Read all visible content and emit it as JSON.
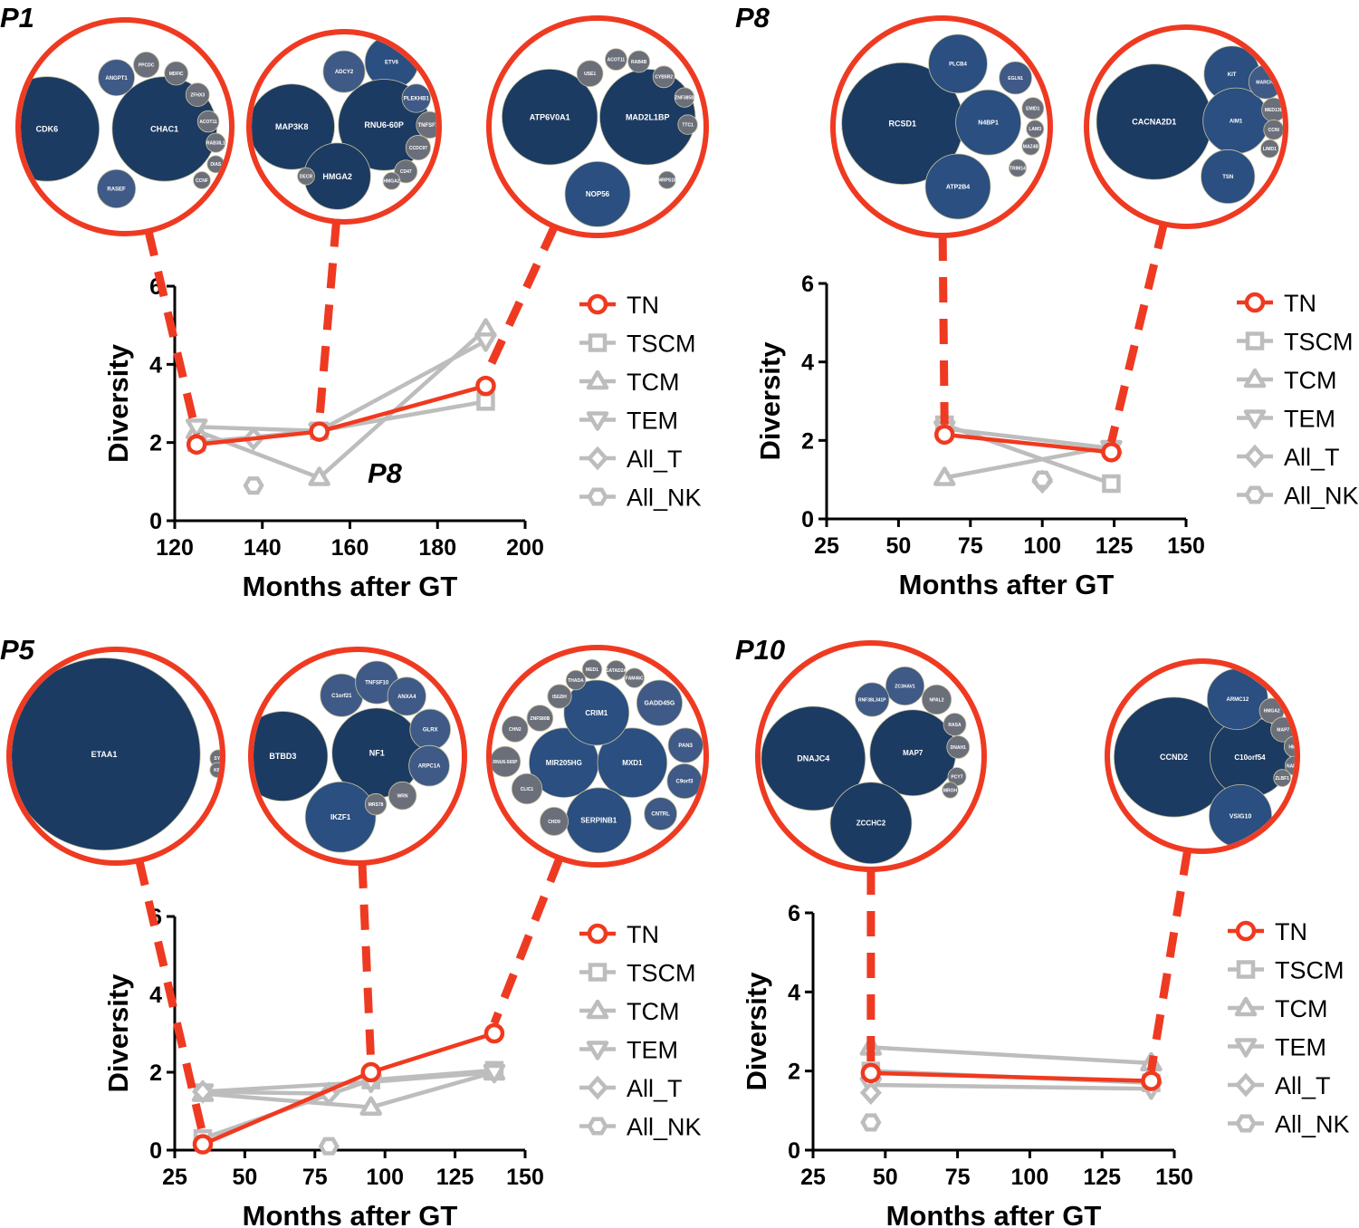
{
  "colors": {
    "tn": "#f0391f",
    "gray": "#bdbdbd",
    "bubble_dark": "#1c3b63",
    "bubble_mid": "#2a4f80",
    "bubble_light": "#3f5a86",
    "bubble_gray": "#6b6f7a",
    "inset_ring": "#ef3a22"
  },
  "legend": [
    "TN",
    "TSCM",
    "TCM",
    "TEM",
    "All_T",
    "All_NK"
  ],
  "chart_data": [
    {
      "id": "P1",
      "type": "line",
      "panel_label": "P1",
      "inner_label": "P8",
      "xlabel": "Months after GT",
      "ylabel": "Diversity",
      "xlim": [
        120,
        200
      ],
      "ylim": [
        0,
        6
      ],
      "xticks": [
        120,
        140,
        160,
        180,
        200
      ],
      "yticks": [
        0,
        2,
        4,
        6
      ],
      "series": [
        {
          "name": "TN",
          "points": [
            [
              125,
              1.95
            ],
            [
              153,
              2.28
            ],
            [
              191,
              3.45
            ]
          ]
        },
        {
          "name": "TSCM",
          "points": [
            [
              125,
              2.0
            ],
            [
              153,
              2.3
            ],
            [
              191,
              3.05
            ]
          ]
        },
        {
          "name": "TCM",
          "points": [
            [
              125,
              2.3
            ],
            [
              153,
              1.1
            ],
            [
              191,
              4.9
            ]
          ]
        },
        {
          "name": "TEM",
          "points": [
            [
              125,
              2.4
            ],
            [
              153,
              2.3
            ],
            [
              191,
              4.6
            ]
          ]
        },
        {
          "name": "All_T",
          "points": [
            [
              138,
              2.1
            ]
          ]
        },
        {
          "name": "All_NK",
          "points": [
            [
              138,
              0.9
            ]
          ]
        }
      ],
      "insets": [
        {
          "anchor_x": 125,
          "bubbles": [
            {
              "label": "CDK6"
            },
            {
              "label": "CHAC1"
            },
            {
              "label": "RASEF"
            },
            {
              "label": "ANGPT1"
            },
            {
              "label": "PPCDC"
            },
            {
              "label": "MDFIC"
            },
            {
              "label": "ZFHX3"
            },
            {
              "label": "ACOT11"
            },
            {
              "label": "RAB3IL1"
            },
            {
              "label": "DIAS"
            },
            {
              "label": "CCNF"
            }
          ]
        },
        {
          "anchor_x": 153,
          "bubbles": [
            {
              "label": "ADCY2"
            },
            {
              "label": "ETV6"
            },
            {
              "label": "MAP3K8"
            },
            {
              "label": "RNU6-60P"
            },
            {
              "label": "HMGA2"
            },
            {
              "label": "PLEKHB1"
            },
            {
              "label": "TNFSF10"
            },
            {
              "label": "CCDC97"
            },
            {
              "label": "CD47"
            },
            {
              "label": "HMGA2"
            },
            {
              "label": "DECR"
            }
          ]
        },
        {
          "anchor_x": 191,
          "bubbles": [
            {
              "label": "ATP6V0A1"
            },
            {
              "label": "MAD2L1BP"
            },
            {
              "label": "NOP56"
            },
            {
              "label": "USE1"
            },
            {
              "label": "ACOT11"
            },
            {
              "label": "RAB4B"
            },
            {
              "label": "CYB5R2"
            },
            {
              "label": "ZNF385B"
            },
            {
              "label": "TTC1"
            },
            {
              "label": "MRPS18"
            }
          ]
        }
      ]
    },
    {
      "id": "P8",
      "type": "line",
      "panel_label": "P8",
      "xlabel": "Months after GT",
      "ylabel": "Diversity",
      "xlim": [
        25,
        150
      ],
      "ylim": [
        0,
        6
      ],
      "xticks": [
        25,
        50,
        75,
        100,
        125,
        150
      ],
      "yticks": [
        0,
        2,
        4,
        6
      ],
      "series": [
        {
          "name": "TN",
          "points": [
            [
              66,
              2.15
            ],
            [
              124,
              1.7
            ]
          ]
        },
        {
          "name": "TSCM",
          "points": [
            [
              66,
              2.4
            ],
            [
              124,
              0.9
            ]
          ]
        },
        {
          "name": "TCM",
          "points": [
            [
              66,
              1.05
            ],
            [
              124,
              1.85
            ]
          ]
        },
        {
          "name": "TEM",
          "points": [
            [
              66,
              2.3
            ],
            [
              124,
              1.8
            ]
          ]
        },
        {
          "name": "All_T",
          "points": [
            [
              100,
              0.95
            ]
          ]
        },
        {
          "name": "All_NK",
          "points": [
            [
              100,
              1.0
            ]
          ]
        }
      ],
      "insets": [
        {
          "anchor_x": 66,
          "bubbles": [
            {
              "label": "RCSD1"
            },
            {
              "label": "PLCB4"
            },
            {
              "label": "N4BP1"
            },
            {
              "label": "ATP2B4"
            },
            {
              "label": "EGLN1"
            },
            {
              "label": "EMID1"
            },
            {
              "label": "LAM3"
            },
            {
              "label": "MAZ4B"
            },
            {
              "label": "TRIM14"
            }
          ]
        },
        {
          "anchor_x": 124,
          "bubbles": [
            {
              "label": "CACNA2D1"
            },
            {
              "label": "KIT"
            },
            {
              "label": "AIM1"
            },
            {
              "label": "TSN"
            },
            {
              "label": "MARCH7"
            },
            {
              "label": "MED13L"
            },
            {
              "label": "CCNI"
            },
            {
              "label": "LIMD1"
            }
          ]
        }
      ]
    },
    {
      "id": "P5",
      "type": "line",
      "panel_label": "P5",
      "xlabel": "Months after GT",
      "ylabel": "Diversity",
      "xlim": [
        25,
        150
      ],
      "ylim": [
        0,
        6
      ],
      "xticks": [
        25,
        50,
        75,
        100,
        125,
        150
      ],
      "yticks": [
        0,
        2,
        4,
        6
      ],
      "series": [
        {
          "name": "TN",
          "points": [
            [
              35,
              0.15
            ],
            [
              95,
              2.0
            ],
            [
              139,
              3.0
            ]
          ]
        },
        {
          "name": "TSCM",
          "points": [
            [
              35,
              0.3
            ],
            [
              95,
              1.8
            ],
            [
              139,
              2.05
            ]
          ]
        },
        {
          "name": "TCM",
          "points": [
            [
              35,
              1.45
            ],
            [
              95,
              1.1
            ],
            [
              139,
              2.0
            ]
          ]
        },
        {
          "name": "TEM",
          "points": [
            [
              35,
              1.5
            ],
            [
              95,
              1.75
            ],
            [
              139,
              2.0
            ]
          ]
        },
        {
          "name": "All_T",
          "points": [
            [
              35,
              1.5
            ],
            [
              80,
              1.45
            ]
          ]
        },
        {
          "name": "All_NK",
          "points": [
            [
              80,
              0.1
            ]
          ]
        }
      ],
      "insets": [
        {
          "anchor_x": 35,
          "bubbles": [
            {
              "label": "ETAA1"
            },
            {
              "label": "SYT"
            },
            {
              "label": "KIF"
            }
          ]
        },
        {
          "anchor_x": 95,
          "bubbles": [
            {
              "label": "BTBD3"
            },
            {
              "label": "NF1"
            },
            {
              "label": "IKZF1"
            },
            {
              "label": "C1orf21"
            },
            {
              "label": "TNFSF10"
            },
            {
              "label": "ANXA4"
            },
            {
              "label": "GLRX"
            },
            {
              "label": "ARPC1A"
            },
            {
              "label": "WRN"
            },
            {
              "label": "MRS78"
            }
          ]
        },
        {
          "anchor_x": 139,
          "bubbles": [
            {
              "label": "MIR205HG"
            },
            {
              "label": "MXD1"
            },
            {
              "label": "SERPINB1"
            },
            {
              "label": "CRIM1"
            },
            {
              "label": "GADD45G"
            },
            {
              "label": "PAN3"
            },
            {
              "label": "C9orf3"
            },
            {
              "label": "CNTRL"
            },
            {
              "label": "CHD9"
            },
            {
              "label": "CLIC1"
            },
            {
              "label": "RNU6-565P"
            },
            {
              "label": "CHN2"
            },
            {
              "label": "ZNF580B"
            },
            {
              "label": "ISGDH"
            },
            {
              "label": "THADA"
            },
            {
              "label": "MED1"
            },
            {
              "label": "GATAD2A"
            },
            {
              "label": "FAM46C"
            }
          ]
        }
      ]
    },
    {
      "id": "P10",
      "type": "line",
      "panel_label": "P10",
      "xlabel": "Months after GT",
      "ylabel": "Diversity",
      "xlim": [
        25,
        150
      ],
      "ylim": [
        0,
        6
      ],
      "xticks": [
        25,
        50,
        75,
        100,
        125,
        150
      ],
      "yticks": [
        0,
        2,
        4,
        6
      ],
      "series": [
        {
          "name": "TN",
          "points": [
            [
              45,
              1.95
            ],
            [
              142,
              1.75
            ]
          ]
        },
        {
          "name": "TSCM",
          "points": [
            [
              45,
              2.0
            ],
            [
              142,
              1.7
            ]
          ]
        },
        {
          "name": "TCM",
          "points": [
            [
              45,
              2.6
            ],
            [
              142,
              2.2
            ]
          ]
        },
        {
          "name": "TEM",
          "points": [
            [
              45,
              1.65
            ],
            [
              142,
              1.55
            ]
          ]
        },
        {
          "name": "All_T",
          "points": [
            [
              45,
              1.45
            ]
          ]
        },
        {
          "name": "All_NK",
          "points": [
            [
              45,
              0.7
            ]
          ]
        }
      ],
      "insets": [
        {
          "anchor_x": 45,
          "bubbles": [
            {
              "label": "DNAJC4"
            },
            {
              "label": "MAP7"
            },
            {
              "label": "ZCCHC2"
            },
            {
              "label": "ZC3HAV1"
            },
            {
              "label": "RNF38L341P"
            },
            {
              "label": "NPAL2"
            },
            {
              "label": "RASA"
            },
            {
              "label": "DNAH1"
            },
            {
              "label": "PCYT"
            },
            {
              "label": "MROH"
            }
          ]
        },
        {
          "anchor_x": 142,
          "bubbles": [
            {
              "label": "CCND2"
            },
            {
              "label": "C10orf54"
            },
            {
              "label": "ARMC12"
            },
            {
              "label": "VSIG10"
            },
            {
              "label": "HMGA2"
            },
            {
              "label": "MAP7"
            },
            {
              "label": "HM11"
            },
            {
              "label": "NAPRN"
            },
            {
              "label": "ZLBF1"
            }
          ]
        }
      ]
    }
  ]
}
